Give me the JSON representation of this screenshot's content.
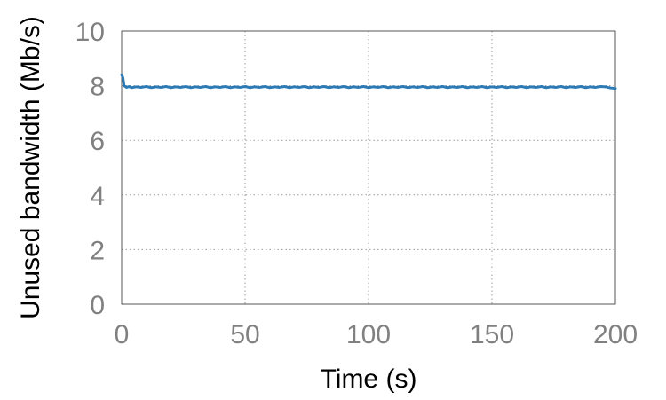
{
  "chart_data": {
    "type": "line",
    "title": "",
    "xlabel": "Time (s)",
    "ylabel": "Unused bandwidth (Mb/s)",
    "xlim": [
      0,
      200
    ],
    "ylim": [
      0,
      10
    ],
    "x_ticks": [
      {
        "value": 0,
        "label": "0"
      },
      {
        "value": 50,
        "label": "50"
      },
      {
        "value": 100,
        "label": "100"
      },
      {
        "value": 150,
        "label": "150"
      },
      {
        "value": 200,
        "label": "200"
      }
    ],
    "y_ticks": [
      {
        "value": 0,
        "label": "0"
      },
      {
        "value": 2,
        "label": "2"
      },
      {
        "value": 4,
        "label": "4"
      },
      {
        "value": 6,
        "label": "6"
      },
      {
        "value": 8,
        "label": "8"
      },
      {
        "value": 10,
        "label": "10"
      }
    ],
    "grid": true,
    "legend": "none",
    "series": [
      {
        "color": "#2c7bb6",
        "x": [
          0,
          0.5,
          1,
          2,
          3,
          4,
          6,
          8,
          10,
          12,
          14,
          16,
          18,
          20,
          22,
          24,
          26,
          28,
          30,
          32,
          34,
          36,
          38,
          40,
          42,
          44,
          46,
          48,
          50,
          52,
          54,
          56,
          58,
          60,
          62,
          64,
          66,
          68,
          70,
          72,
          74,
          76,
          78,
          80,
          82,
          84,
          86,
          88,
          90,
          92,
          94,
          96,
          98,
          100,
          102,
          104,
          106,
          108,
          110,
          112,
          114,
          116,
          118,
          120,
          122,
          124,
          126,
          128,
          130,
          132,
          134,
          136,
          138,
          140,
          142,
          144,
          146,
          148,
          150,
          152,
          154,
          156,
          158,
          160,
          162,
          164,
          166,
          168,
          170,
          172,
          174,
          176,
          178,
          180,
          182,
          184,
          186,
          188,
          190,
          192,
          194,
          196,
          198,
          200
        ],
        "values": [
          8.4,
          8.3,
          8.0,
          7.94,
          7.97,
          7.93,
          7.96,
          7.94,
          7.97,
          7.93,
          7.96,
          7.94,
          7.97,
          7.93,
          7.96,
          7.94,
          7.97,
          7.93,
          7.96,
          7.94,
          7.97,
          7.93,
          7.96,
          7.94,
          7.97,
          7.93,
          7.96,
          7.94,
          7.97,
          7.93,
          7.96,
          7.94,
          7.97,
          7.93,
          7.96,
          7.94,
          7.97,
          7.93,
          7.96,
          7.94,
          7.97,
          7.93,
          7.96,
          7.94,
          7.97,
          7.93,
          7.96,
          7.94,
          7.97,
          7.93,
          7.96,
          7.94,
          7.97,
          7.93,
          7.96,
          7.94,
          7.97,
          7.93,
          7.96,
          7.94,
          7.97,
          7.93,
          7.96,
          7.94,
          7.97,
          7.93,
          7.96,
          7.94,
          7.97,
          7.93,
          7.96,
          7.94,
          7.97,
          7.93,
          7.96,
          7.94,
          7.97,
          7.93,
          7.96,
          7.94,
          7.97,
          7.93,
          7.96,
          7.94,
          7.97,
          7.93,
          7.96,
          7.94,
          7.97,
          7.93,
          7.96,
          7.94,
          7.97,
          7.93,
          7.96,
          7.94,
          7.97,
          7.93,
          7.96,
          7.94,
          7.97,
          7.96,
          7.92,
          7.9
        ]
      }
    ]
  }
}
